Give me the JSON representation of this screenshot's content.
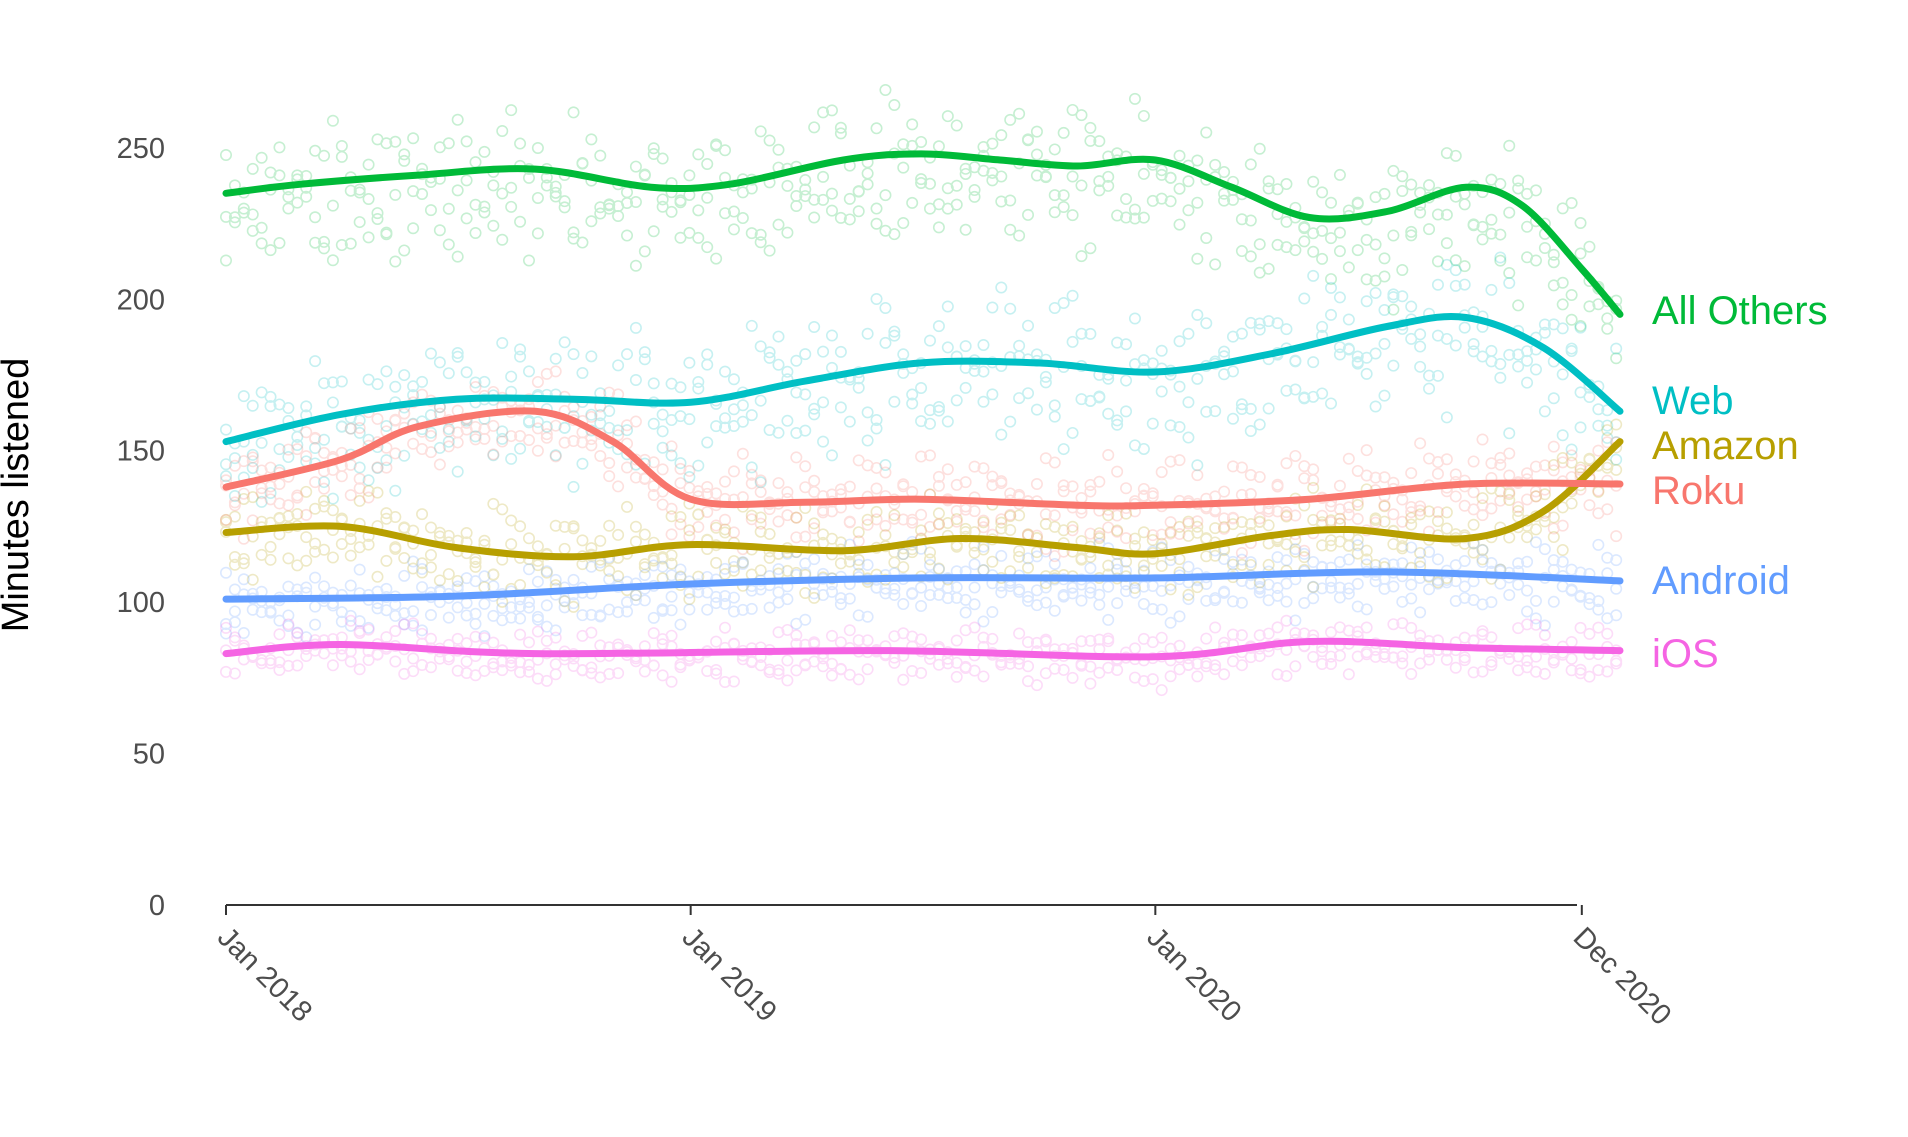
{
  "chart_data": {
    "type": "line",
    "title": "",
    "xlabel": "",
    "ylabel": "Minutes listened",
    "x_range": [
      "2018-01-01",
      "2020-12-31"
    ],
    "ylim": [
      0,
      280
    ],
    "y_ticks": [
      0,
      50,
      100,
      150,
      200,
      250
    ],
    "x_ticks": [
      {
        "date": "2018-01-01",
        "label": "Jan 2018"
      },
      {
        "date": "2019-01-01",
        "label": "Jan 2019"
      },
      {
        "date": "2020-01-01",
        "label": "Jan 2020"
      },
      {
        "date": "2020-12-01",
        "label": "Dec 2020"
      }
    ],
    "grid": false,
    "legend": "direct-labels-right",
    "series": [
      {
        "name": "All Others",
        "color": "#00BA38",
        "trend": [
          [
            "2018-01-01",
            235
          ],
          [
            "2018-03-01",
            238
          ],
          [
            "2018-06-01",
            241
          ],
          [
            "2018-09-01",
            243
          ],
          [
            "2018-12-01",
            237
          ],
          [
            "2019-02-01",
            238
          ],
          [
            "2019-05-01",
            246
          ],
          [
            "2019-07-01",
            248
          ],
          [
            "2019-09-01",
            246
          ],
          [
            "2019-11-01",
            244
          ],
          [
            "2020-01-01",
            246
          ],
          [
            "2020-03-01",
            237
          ],
          [
            "2020-05-01",
            227
          ],
          [
            "2020-07-01",
            229
          ],
          [
            "2020-09-01",
            237
          ],
          [
            "2020-10-15",
            231
          ],
          [
            "2020-12-01",
            210
          ],
          [
            "2020-12-31",
            195
          ]
        ],
        "points": {
          "center": 235,
          "spread": 32,
          "band_offset": -18
        }
      },
      {
        "name": "Web",
        "color": "#00BFC4",
        "trend": [
          [
            "2018-01-01",
            153
          ],
          [
            "2018-04-01",
            162
          ],
          [
            "2018-07-01",
            167
          ],
          [
            "2018-10-01",
            167
          ],
          [
            "2019-01-01",
            166
          ],
          [
            "2019-04-01",
            173
          ],
          [
            "2019-07-01",
            179
          ],
          [
            "2019-10-01",
            179
          ],
          [
            "2020-01-01",
            176
          ],
          [
            "2020-04-01",
            182
          ],
          [
            "2020-07-01",
            191
          ],
          [
            "2020-09-01",
            194
          ],
          [
            "2020-11-01",
            184
          ],
          [
            "2020-12-31",
            163
          ]
        ],
        "points": {
          "center": 175,
          "spread": 34,
          "band_offset": -10
        }
      },
      {
        "name": "Amazon",
        "color": "#B79F00",
        "trend": [
          [
            "2018-01-01",
            123
          ],
          [
            "2018-04-01",
            125
          ],
          [
            "2018-07-01",
            118
          ],
          [
            "2018-10-01",
            115
          ],
          [
            "2019-01-01",
            119
          ],
          [
            "2019-05-01",
            117
          ],
          [
            "2019-08-01",
            121
          ],
          [
            "2019-11-01",
            118
          ],
          [
            "2020-01-01",
            116
          ],
          [
            "2020-04-01",
            122
          ],
          [
            "2020-06-01",
            124
          ],
          [
            "2020-09-01",
            121
          ],
          [
            "2020-11-01",
            130
          ],
          [
            "2020-12-31",
            153
          ]
        ],
        "points": {
          "center": 120,
          "spread": 20,
          "band_offset": -4
        }
      },
      {
        "name": "Roku",
        "color": "#F8766D",
        "trend": [
          [
            "2018-01-01",
            138
          ],
          [
            "2018-04-01",
            147
          ],
          [
            "2018-06-01",
            158
          ],
          [
            "2018-09-01",
            163
          ],
          [
            "2018-11-01",
            153
          ],
          [
            "2019-01-01",
            134
          ],
          [
            "2019-04-01",
            133
          ],
          [
            "2019-07-01",
            134
          ],
          [
            "2019-11-01",
            132
          ],
          [
            "2020-01-01",
            132
          ],
          [
            "2020-05-01",
            134
          ],
          [
            "2020-09-01",
            139
          ],
          [
            "2020-12-31",
            139
          ]
        ],
        "points": {
          "center": 138,
          "spread": 20,
          "band_offset": -2
        }
      },
      {
        "name": "Android",
        "color": "#619CFF",
        "trend": [
          [
            "2018-01-01",
            101
          ],
          [
            "2018-07-01",
            102
          ],
          [
            "2019-01-01",
            106
          ],
          [
            "2019-07-01",
            108
          ],
          [
            "2020-01-01",
            108
          ],
          [
            "2020-07-01",
            110
          ],
          [
            "2020-12-31",
            107
          ]
        ],
        "points": {
          "center": 103,
          "spread": 16,
          "band_offset": -6
        }
      },
      {
        "name": "iOS",
        "color": "#F564E3",
        "trend": [
          [
            "2018-01-01",
            83
          ],
          [
            "2018-04-01",
            86
          ],
          [
            "2018-09-01",
            83
          ],
          [
            "2019-06-01",
            84
          ],
          [
            "2020-01-01",
            82
          ],
          [
            "2020-05-01",
            87
          ],
          [
            "2020-09-01",
            85
          ],
          [
            "2020-12-31",
            84
          ]
        ],
        "points": {
          "center": 83,
          "spread": 12,
          "band_offset": -4
        }
      }
    ]
  }
}
